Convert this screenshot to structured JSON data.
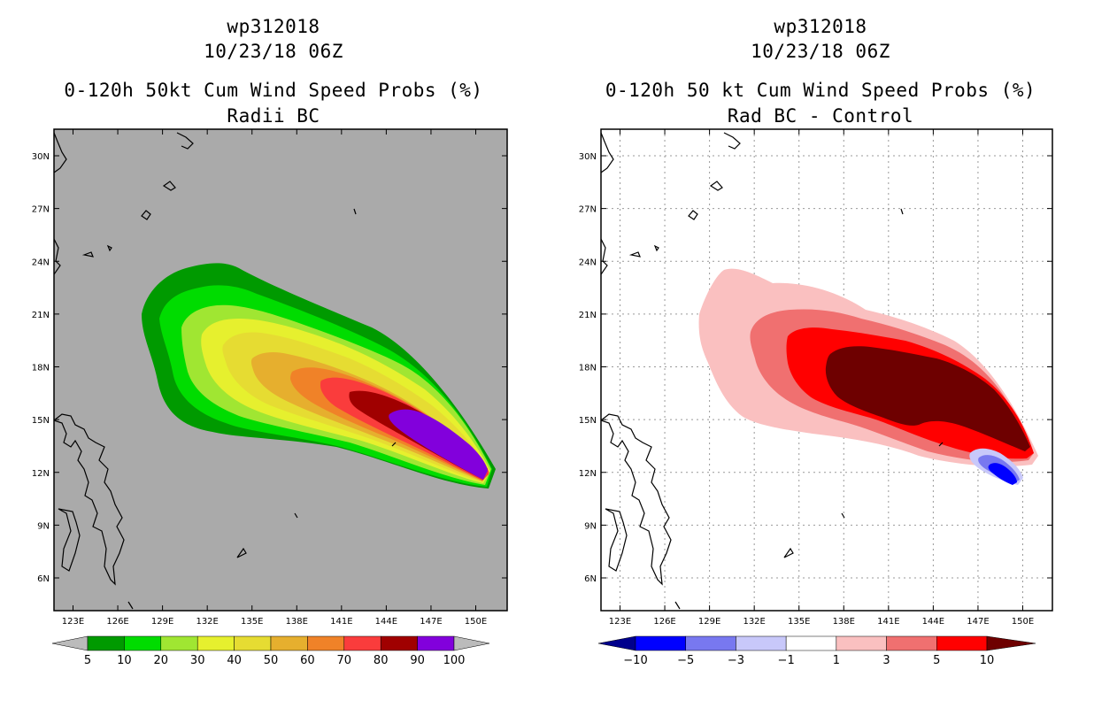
{
  "panels": [
    {
      "title_lines": [
        "wp312018",
        "10/23/18 06Z",
        "0-120h 50kt Cum Wind Speed Probs (%)",
        "Radii BC"
      ],
      "background": "#aaaaaa"
    },
    {
      "title_lines": [
        "wp312018",
        "10/23/18 06Z",
        "0-120h 50 kt Cum Wind Speed Probs (%)",
        "Rad BC - Control"
      ],
      "background": "#ffffff"
    }
  ],
  "chart_data": [
    {
      "type": "map-contour",
      "title": "0-120h 50kt Cum Wind Speed Probs (%)",
      "subtitle": "Radii BC",
      "storm": "wp312018",
      "time": "10/23/18 06Z",
      "x_ticks": [
        "123E",
        "126E",
        "129E",
        "132E",
        "135E",
        "138E",
        "141E",
        "144E",
        "147E",
        "150E"
      ],
      "y_ticks": [
        "30N",
        "27N",
        "24N",
        "21N",
        "18N",
        "15N",
        "12N",
        "9N",
        "6N"
      ],
      "x_range_deg": [
        121.5,
        152.5
      ],
      "y_range_deg": [
        4.2,
        31.5
      ],
      "grid": false,
      "levels": [
        {
          "label": "5",
          "color": "#009a00"
        },
        {
          "label": "10",
          "color": "#00dc00"
        },
        {
          "label": "20",
          "color": "#a0e632"
        },
        {
          "label": "30",
          "color": "#e6f02e"
        },
        {
          "label": "40",
          "color": "#e6dc32"
        },
        {
          "label": "50",
          "color": "#e6af2e"
        },
        {
          "label": "60",
          "color": "#f08228"
        },
        {
          "label": "70",
          "color": "#fa3c3c"
        },
        {
          "label": "80",
          "color": "#a00000"
        },
        {
          "label": "90",
          "color": "#8200dc"
        },
        {
          "label": "100",
          "color": ""
        }
      ],
      "colorbar_end_color": "#bbbbbb"
    },
    {
      "type": "map-contour",
      "title": "0-120h 50 kt Cum Wind Speed Probs (%)",
      "subtitle": "Rad BC - Control",
      "storm": "wp312018",
      "time": "10/23/18 06Z",
      "x_ticks": [
        "123E",
        "126E",
        "129E",
        "132E",
        "135E",
        "138E",
        "141E",
        "144E",
        "147E",
        "150E"
      ],
      "y_ticks": [
        "30N",
        "27N",
        "24N",
        "21N",
        "18N",
        "15N",
        "12N",
        "9N",
        "6N"
      ],
      "x_range_deg": [
        121.5,
        152.5
      ],
      "y_range_deg": [
        4.2,
        31.5
      ],
      "grid": true,
      "levels": [
        {
          "label": "-10",
          "color": "#0000ff"
        },
        {
          "label": "-5",
          "color": "#7878f0"
        },
        {
          "label": "-3",
          "color": "#c8c8fa"
        },
        {
          "label": "-1",
          "color": "#ffffff"
        },
        {
          "label": "1",
          "color": "#fac0c0"
        },
        {
          "label": "3",
          "color": "#f07070"
        },
        {
          "label": "5",
          "color": "#ff0000"
        },
        {
          "label": "10",
          "color": ""
        }
      ],
      "colorbar_start_color": "#00008c",
      "colorbar_end_color": "#6e0000"
    }
  ]
}
